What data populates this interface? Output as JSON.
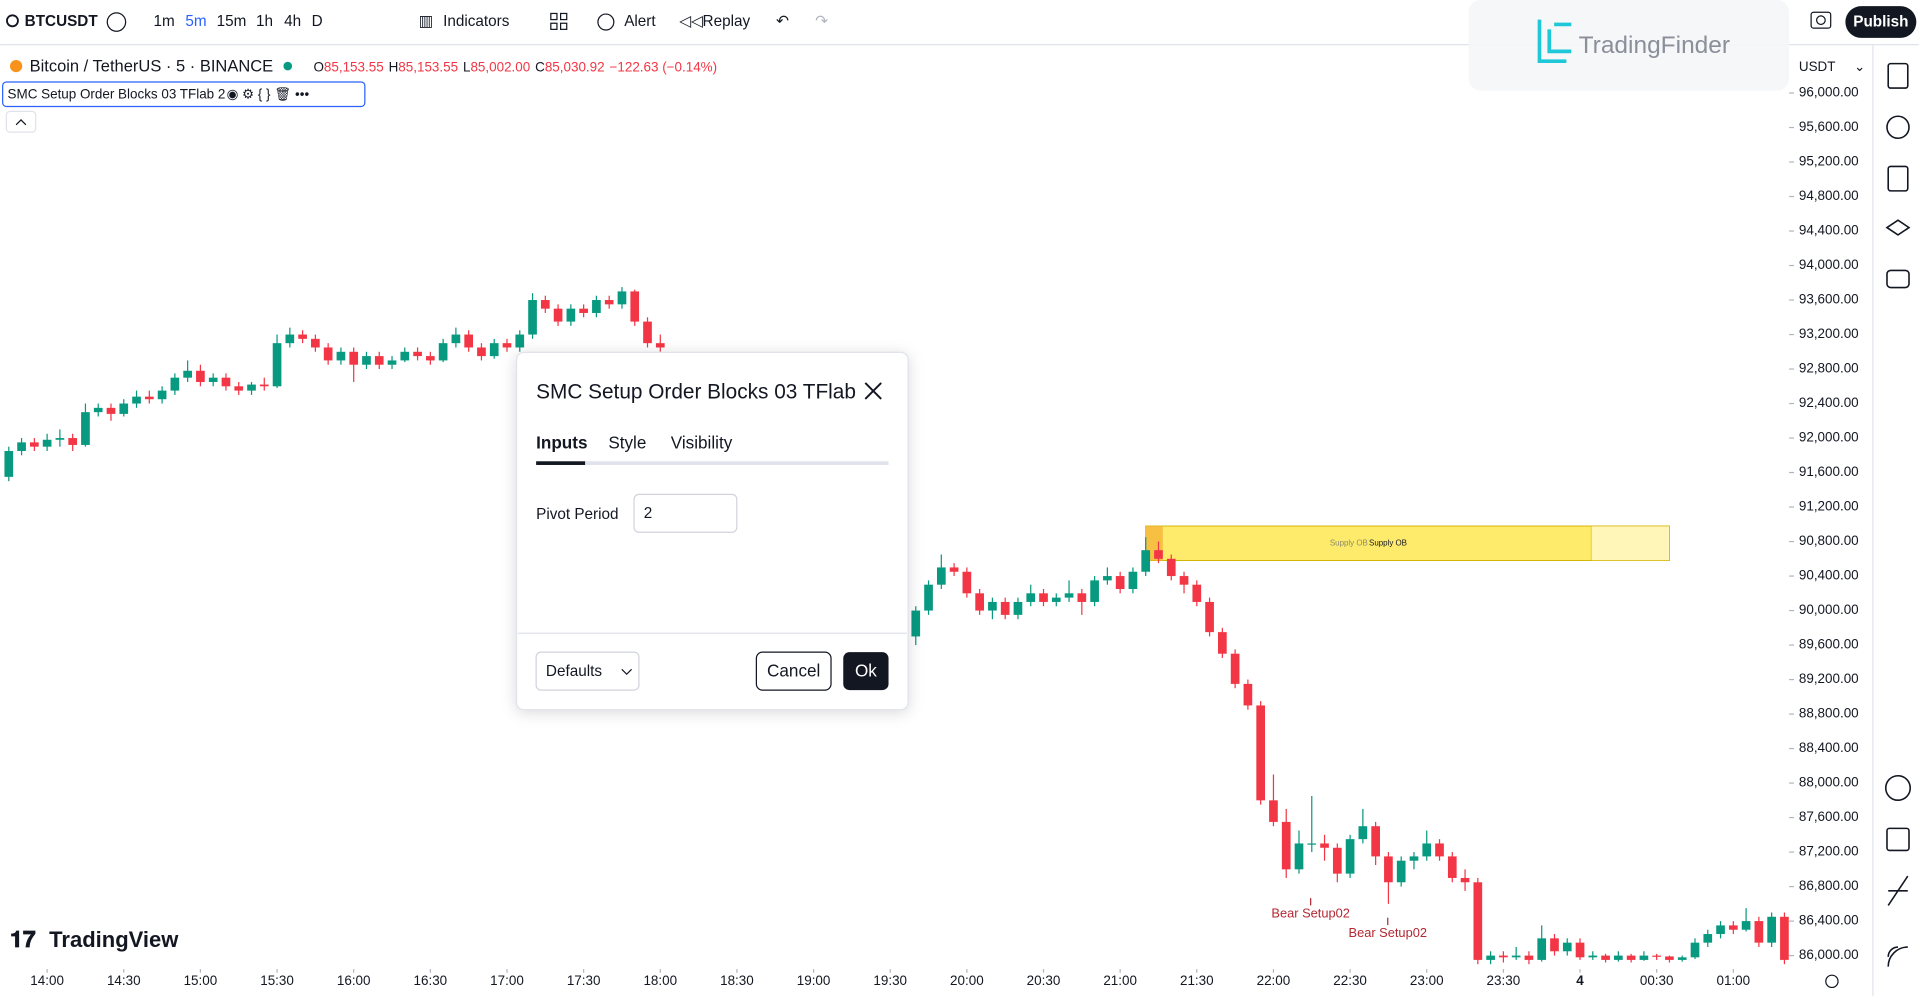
{
  "toolbar": {
    "symbol": "BTCUSDT",
    "intervals": [
      "1m",
      "5m",
      "15m",
      "1h",
      "4h",
      "D"
    ],
    "active_interval": 1,
    "indicators": "Indicators",
    "alert": "Alert",
    "replay": "Replay",
    "publish": "Publish"
  },
  "watermark": "TradingFinder",
  "logo": "TradingView",
  "currency": "USDT",
  "legend": {
    "title": "Bitcoin / TetherUS · 5 · BINANCE",
    "o_key": "O",
    "o": "85,153.55",
    "h_key": "H",
    "h": "85,153.55",
    "l_key": "L",
    "l": "85,002.00",
    "c_key": "C",
    "c": "85,030.92",
    "change": "−122.63 (−0.14%)"
  },
  "indicator_label": "SMC Setup Order Blocks 03 TFlab 2",
  "dialog": {
    "title": "SMC Setup Order Blocks 03 TFlab",
    "tabs": [
      "Inputs",
      "Style",
      "Visibility"
    ],
    "field_label": "Pivot Period",
    "field_value": "2",
    "defaults": "Defaults",
    "cancel": "Cancel",
    "ok": "Ok"
  },
  "chart_data": {
    "type": "candlestick",
    "xlim": [
      -0.5,
      139.5
    ],
    "ylim": [
      85872,
      96440
    ],
    "up_color": "#089981",
    "down_color": "#f23645",
    "xticks": [
      {
        "value": 3,
        "label": "14:00"
      },
      {
        "value": 9,
        "label": "14:30"
      },
      {
        "value": 15,
        "label": "15:00"
      },
      {
        "value": 21,
        "label": "15:30"
      },
      {
        "value": 27,
        "label": "16:00"
      },
      {
        "value": 33,
        "label": "16:30"
      },
      {
        "value": 39,
        "label": "17:00"
      },
      {
        "value": 45,
        "label": "17:30"
      },
      {
        "value": 51,
        "label": "18:00"
      },
      {
        "value": 57,
        "label": "18:30"
      },
      {
        "value": 63,
        "label": "19:00"
      },
      {
        "value": 69,
        "label": "19:30"
      },
      {
        "value": 75,
        "label": "20:00"
      },
      {
        "value": 81,
        "label": "20:30"
      },
      {
        "value": 87,
        "label": "21:00"
      },
      {
        "value": 93,
        "label": "21:30"
      },
      {
        "value": 99,
        "label": "22:00"
      },
      {
        "value": 105,
        "label": "22:30"
      },
      {
        "value": 111,
        "label": "23:00"
      },
      {
        "value": 117,
        "label": "23:30"
      },
      {
        "value": 123,
        "label": "4"
      },
      {
        "value": 129,
        "label": "00:30"
      },
      {
        "value": 135,
        "label": "01:00"
      }
    ],
    "yticks": [
      {
        "value": 86000,
        "label": "86,000.00"
      },
      {
        "value": 86400,
        "label": "86,400.00"
      },
      {
        "value": 86800,
        "label": "86,800.00"
      },
      {
        "value": 87200,
        "label": "87,200.00"
      },
      {
        "value": 87600,
        "label": "87,600.00"
      },
      {
        "value": 88000,
        "label": "88,000.00"
      },
      {
        "value": 88400,
        "label": "88,400.00"
      },
      {
        "value": 88800,
        "label": "88,800.00"
      },
      {
        "value": 89200,
        "label": "89,200.00"
      },
      {
        "value": 89600,
        "label": "89,600.00"
      },
      {
        "value": 90000,
        "label": "90,000.00"
      },
      {
        "value": 90400,
        "label": "90,400.00"
      },
      {
        "value": 90800,
        "label": "90,800.00"
      },
      {
        "value": 91200,
        "label": "91,200.00"
      },
      {
        "value": 91600,
        "label": "91,600.00"
      },
      {
        "value": 92000,
        "label": "92,000.00"
      },
      {
        "value": 92400,
        "label": "92,400.00"
      },
      {
        "value": 92800,
        "label": "92,800.00"
      },
      {
        "value": 93200,
        "label": "93,200.00"
      },
      {
        "value": 93600,
        "label": "93,600.00"
      },
      {
        "value": 94000,
        "label": "94,000.00"
      },
      {
        "value": 94400,
        "label": "94,400.00"
      },
      {
        "value": 94800,
        "label": "94,800.00"
      },
      {
        "value": 95200,
        "label": "95,200.00"
      },
      {
        "value": 95600,
        "label": "95,600.00"
      },
      {
        "value": 96000,
        "label": "96,000.00"
      }
    ],
    "candles": [
      [
        91550,
        91900,
        91500,
        91850
      ],
      [
        91850,
        92000,
        91800,
        91950
      ],
      [
        91950,
        92000,
        91850,
        91900
      ],
      [
        91900,
        92050,
        91850,
        91980
      ],
      [
        91980,
        92100,
        91900,
        92000
      ],
      [
        92000,
        92050,
        91850,
        91920
      ],
      [
        91920,
        92400,
        91900,
        92300
      ],
      [
        92300,
        92400,
        92250,
        92350
      ],
      [
        92350,
        92400,
        92200,
        92280
      ],
      [
        92280,
        92450,
        92250,
        92400
      ],
      [
        92400,
        92550,
        92350,
        92480
      ],
      [
        92480,
        92550,
        92400,
        92450
      ],
      [
        92450,
        92600,
        92400,
        92550
      ],
      [
        92550,
        92750,
        92500,
        92700
      ],
      [
        92700,
        92900,
        92650,
        92780
      ],
      [
        92780,
        92850,
        92600,
        92650
      ],
      [
        92650,
        92750,
        92600,
        92700
      ],
      [
        92700,
        92750,
        92550,
        92600
      ],
      [
        92600,
        92650,
        92500,
        92550
      ],
      [
        92550,
        92650,
        92500,
        92620
      ],
      [
        92620,
        92700,
        92550,
        92600
      ],
      [
        92600,
        93200,
        92580,
        93100
      ],
      [
        93100,
        93280,
        93050,
        93200
      ],
      [
        93200,
        93250,
        93100,
        93150
      ],
      [
        93150,
        93200,
        93000,
        93050
      ],
      [
        93050,
        93100,
        92850,
        92900
      ],
      [
        92900,
        93050,
        92850,
        93000
      ],
      [
        93000,
        93050,
        92650,
        92850
      ],
      [
        92850,
        93000,
        92800,
        92950
      ],
      [
        92950,
        93000,
        92800,
        92850
      ],
      [
        92850,
        92950,
        92800,
        92900
      ],
      [
        92900,
        93050,
        92880,
        93000
      ],
      [
        93000,
        93050,
        92900,
        92950
      ],
      [
        92950,
        93000,
        92850,
        92900
      ],
      [
        92900,
        93150,
        92880,
        93100
      ],
      [
        93100,
        93280,
        93050,
        93200
      ],
      [
        93200,
        93250,
        93000,
        93050
      ],
      [
        93050,
        93100,
        92900,
        92950
      ],
      [
        92950,
        93150,
        92920,
        93100
      ],
      [
        93100,
        93150,
        93000,
        93050
      ],
      [
        93050,
        93250,
        93000,
        93200
      ],
      [
        93200,
        93680,
        93150,
        93600
      ],
      [
        93600,
        93650,
        93450,
        93500
      ],
      [
        93500,
        93550,
        93300,
        93350
      ],
      [
        93350,
        93550,
        93300,
        93500
      ],
      [
        93500,
        93550,
        93400,
        93450
      ],
      [
        93450,
        93650,
        93400,
        93600
      ],
      [
        93600,
        93650,
        93500,
        93550
      ],
      [
        93550,
        93750,
        93500,
        93700
      ],
      [
        93700,
        93720,
        93300,
        93350
      ],
      [
        93350,
        93400,
        93050,
        93100
      ],
      [
        93100,
        93200,
        93000,
        93050
      ],
      null,
      null,
      null,
      null,
      null,
      null,
      null,
      null,
      null,
      null,
      null,
      null,
      null,
      null,
      null,
      null,
      null,
      null,
      null,
      [
        89700,
        90050,
        89600,
        90000
      ],
      [
        90000,
        90350,
        89950,
        90300
      ],
      [
        90300,
        90650,
        90250,
        90500
      ],
      [
        90500,
        90550,
        90400,
        90450
      ],
      [
        90450,
        90500,
        90150,
        90200
      ],
      [
        90200,
        90250,
        89950,
        90000
      ],
      [
        90000,
        90150,
        89900,
        90100
      ],
      [
        90100,
        90150,
        89900,
        89950
      ],
      [
        89950,
        90150,
        89900,
        90100
      ],
      [
        90100,
        90300,
        90050,
        90200
      ],
      [
        90200,
        90250,
        90050,
        90100
      ],
      [
        90100,
        90200,
        90050,
        90150
      ],
      [
        90150,
        90350,
        90100,
        90200
      ],
      [
        90200,
        90250,
        89950,
        90100
      ],
      [
        90100,
        90400,
        90050,
        90350
      ],
      [
        90350,
        90500,
        90300,
        90400
      ],
      [
        90400,
        90450,
        90200,
        90250
      ],
      [
        90250,
        90500,
        90200,
        90450
      ],
      [
        90450,
        90850,
        90400,
        90700
      ],
      [
        90700,
        90800,
        90550,
        90600
      ],
      [
        90600,
        90650,
        90350,
        90400
      ],
      [
        90400,
        90450,
        90200,
        90300
      ],
      [
        90300,
        90350,
        90050,
        90100
      ],
      [
        90100,
        90150,
        89700,
        89750
      ],
      [
        89750,
        89800,
        89450,
        89500
      ],
      [
        89500,
        89550,
        89100,
        89150
      ],
      [
        89150,
        89200,
        88850,
        88900
      ],
      [
        88900,
        88950,
        87750,
        87800
      ],
      [
        87800,
        88100,
        87500,
        87550
      ],
      [
        87550,
        87700,
        86900,
        87000
      ],
      [
        87000,
        87450,
        86950,
        87300
      ],
      [
        87300,
        87850,
        87200,
        87300
      ],
      [
        87300,
        87400,
        87100,
        87250
      ],
      [
        87250,
        87300,
        86850,
        86950
      ],
      [
        86950,
        87400,
        86900,
        87350
      ],
      [
        87350,
        87700,
        87300,
        87500
      ],
      [
        87500,
        87550,
        87050,
        87150
      ],
      [
        87150,
        87200,
        86600,
        86850
      ],
      [
        86850,
        87150,
        86800,
        87100
      ],
      [
        87100,
        87200,
        87000,
        87150
      ],
      [
        87150,
        87450,
        87100,
        87300
      ],
      [
        87300,
        87350,
        87100,
        87150
      ],
      [
        87150,
        87200,
        86850,
        86900
      ],
      [
        86900,
        87000,
        86750,
        86850
      ],
      [
        86850,
        86900,
        85900,
        85950
      ],
      [
        85950,
        86050,
        85900,
        86000
      ],
      [
        86000,
        86050,
        85920,
        85980
      ],
      [
        85980,
        86100,
        85950,
        86000
      ],
      [
        86000,
        86050,
        85900,
        85950
      ],
      [
        85950,
        86350,
        85930,
        86200
      ],
      [
        86200,
        86250,
        86000,
        86050
      ],
      [
        86050,
        86200,
        86000,
        86150
      ],
      [
        86150,
        86200,
        85950,
        85980
      ],
      [
        85980,
        86050,
        85950,
        86000
      ],
      [
        86000,
        86020,
        85920,
        85950
      ],
      [
        85950,
        86050,
        85930,
        86000
      ],
      [
        86000,
        86020,
        85920,
        85950
      ],
      [
        85950,
        86050,
        85940,
        86000
      ],
      [
        86000,
        86020,
        85950,
        85990
      ],
      [
        85990,
        86000,
        85920,
        85950
      ],
      [
        85950,
        86000,
        85930,
        85980
      ],
      [
        85980,
        86200,
        85960,
        86150
      ],
      [
        86150,
        86300,
        86100,
        86250
      ],
      [
        86250,
        86400,
        86200,
        86350
      ],
      [
        86350,
        86400,
        86250,
        86300
      ],
      [
        86300,
        86550,
        86280,
        86400
      ],
      [
        86400,
        86450,
        86100,
        86150
      ],
      [
        86150,
        86500,
        86100,
        86450
      ],
      [
        86450,
        86500,
        85900,
        85950
      ]
    ],
    "zone": {
      "label": "Supply OB",
      "top": 90980,
      "bottom": 90580,
      "start": 89,
      "end": 130,
      "color": "#ffeb6b"
    },
    "annotations": [
      "Bear Setup02",
      "Bear Setup02"
    ]
  }
}
